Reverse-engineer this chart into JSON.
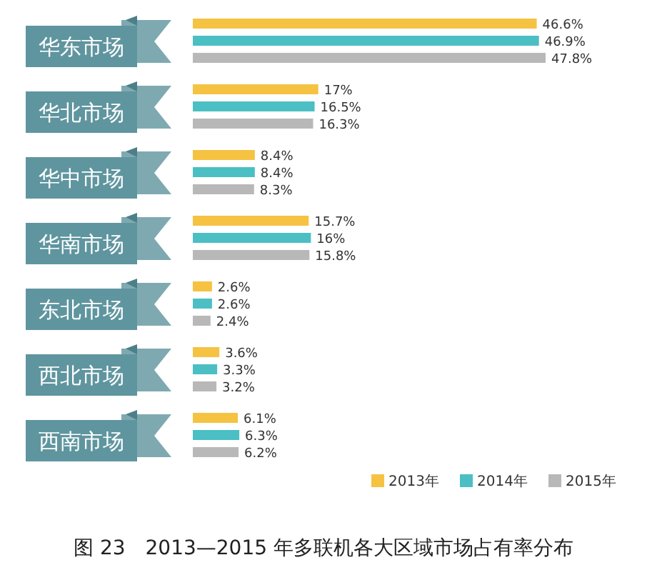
{
  "chart_data": {
    "type": "bar",
    "orientation": "horizontal",
    "title": "图 23　2013—2015 年多联机各大区域市场占有率分布",
    "categories": [
      "华东市场",
      "华北市场",
      "华中市场",
      "华南市场",
      "东北市场",
      "西北市场",
      "西南市场"
    ],
    "series": [
      {
        "name": "2013年",
        "color": "#f5c242",
        "values": [
          46.6,
          17,
          8.4,
          15.7,
          2.6,
          3.6,
          6.1
        ],
        "value_labels": [
          "46.6%",
          "17%",
          "8.4%",
          "15.7%",
          "2.6%",
          "3.6%",
          "6.1%"
        ]
      },
      {
        "name": "2014年",
        "color": "#4bbfc3",
        "values": [
          46.9,
          16.5,
          8.4,
          16,
          2.6,
          3.3,
          6.3
        ],
        "value_labels": [
          "46.9%",
          "16.5%",
          "8.4%",
          "16%",
          "2.6%",
          "3.3%",
          "6.3%"
        ]
      },
      {
        "name": "2015年",
        "color": "#b8b8b8",
        "values": [
          47.8,
          16.3,
          8.3,
          15.8,
          2.4,
          3.2,
          6.2
        ],
        "value_labels": [
          "47.8%",
          "16.3%",
          "8.3%",
          "15.8%",
          "2.4%",
          "3.2%",
          "6.2%"
        ]
      }
    ],
    "legend": "bottom right"
  }
}
